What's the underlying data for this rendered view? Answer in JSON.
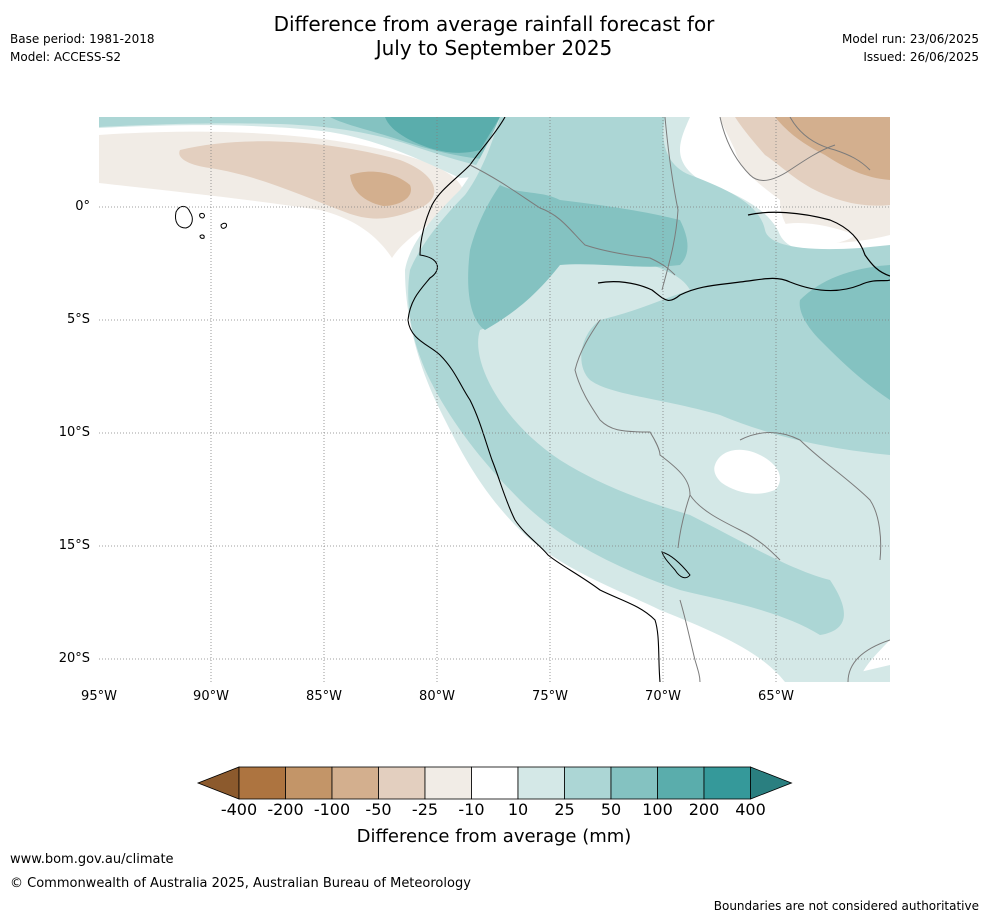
{
  "header": {
    "title_line1": "Difference from average rainfall forecast for",
    "title_line2": "July to September 2025",
    "base_period": "Base period: 1981-2018",
    "model": "Model: ACCESS-S2",
    "model_run": "Model run: 23/06/2025",
    "issued": "Issued: 26/06/2025"
  },
  "map": {
    "region": "north-western South America and eastern Pacific",
    "lon_range_deg": [
      -95,
      -60.5
    ],
    "lat_range_deg": [
      -21,
      4
    ],
    "latitude_labels": [
      "0°",
      "5°S",
      "10°S",
      "15°S",
      "20°S"
    ],
    "longitude_labels": [
      "95°W",
      "90°W",
      "85°W",
      "80°W",
      "75°W",
      "70°W",
      "65°W"
    ],
    "gridlines": true
  },
  "colorbar": {
    "title": "Difference from average (mm)",
    "tick_labels": [
      "-400",
      "-200",
      "-100",
      "-50",
      "-25",
      "-10",
      "10",
      "25",
      "50",
      "100",
      "200",
      "400"
    ],
    "colors": [
      "#8c5a2d",
      "#ad7440",
      "#c39568",
      "#d3af8e",
      "#e3cfbf",
      "#f1ece6",
      "#ffffff",
      "#d4e8e7",
      "#acd6d5",
      "#84c2c1",
      "#5aadac",
      "#35999a",
      "#2a7f80"
    ]
  },
  "footer": {
    "url": "www.bom.gov.au/climate",
    "copyright": "© Commonwealth of Australia 2025, Australian Bureau of Meteorology",
    "disclaimer": "Boundaries are not considered authoritative"
  }
}
